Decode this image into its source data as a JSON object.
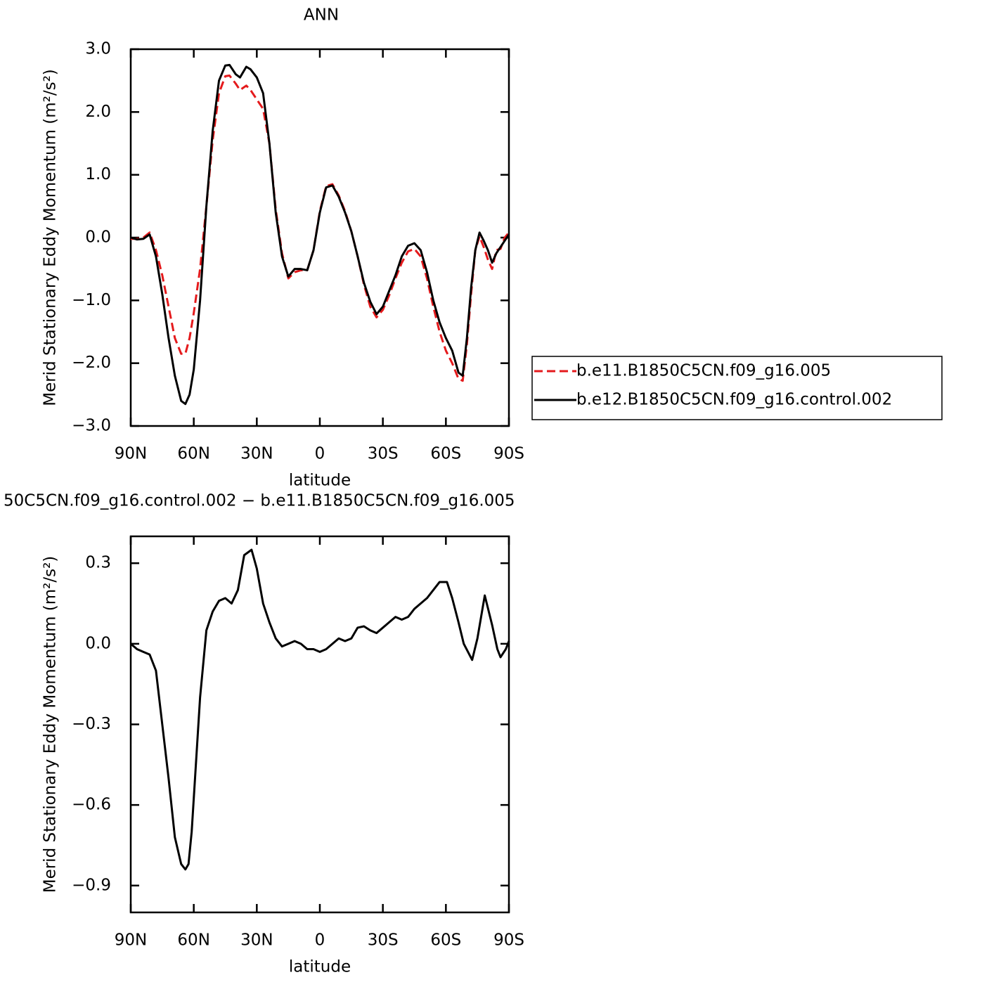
{
  "chart_data": [
    {
      "type": "line",
      "title": "ANN",
      "xlabel": "latitude",
      "ylabel": "Merid Stationary Eddy Momentum (m²/s²)",
      "x": [
        90,
        87,
        84,
        81,
        78,
        75,
        72,
        69,
        66,
        64,
        62,
        60,
        57,
        54,
        51,
        48,
        45,
        43,
        40,
        38,
        35,
        33,
        30,
        27,
        24,
        21,
        18,
        15,
        12,
        9,
        6,
        3,
        0,
        -3,
        -6,
        -9,
        -12,
        -15,
        -18,
        -21,
        -24,
        -27,
        -30,
        -33,
        -36,
        -39,
        -42,
        -45,
        -48,
        -51,
        -54,
        -57,
        -60,
        -63,
        -66,
        -68,
        -70,
        -72,
        -74,
        -76,
        -78,
        -80,
        -82,
        -84,
        -86,
        -88,
        -90
      ],
      "series": [
        {
          "name": "b.e11.B1850C5CN.f09_g16.005",
          "color": "#e41a1c",
          "dashed": true,
          "values": [
            -0.02,
            -0.02,
            0.0,
            0.08,
            -0.2,
            -0.6,
            -1.1,
            -1.6,
            -1.85,
            -1.85,
            -1.6,
            -1.2,
            -0.5,
            0.5,
            1.55,
            2.3,
            2.57,
            2.58,
            2.45,
            2.35,
            2.42,
            2.35,
            2.2,
            2.05,
            1.5,
            0.45,
            -0.25,
            -0.65,
            -0.55,
            -0.52,
            -0.52,
            -0.2,
            0.42,
            0.82,
            0.85,
            0.67,
            0.42,
            0.1,
            -0.3,
            -0.75,
            -1.1,
            -1.27,
            -1.15,
            -0.92,
            -0.65,
            -0.4,
            -0.22,
            -0.18,
            -0.3,
            -0.65,
            -1.1,
            -1.5,
            -1.8,
            -2.0,
            -2.25,
            -2.28,
            -1.7,
            -0.9,
            -0.2,
            0.02,
            -0.15,
            -0.35,
            -0.5,
            -0.2,
            -0.18,
            0.0,
            0.08
          ]
        },
        {
          "name": "b.e12.B1850C5CN.f09_g16.control.002",
          "color": "#000000",
          "dashed": false,
          "values": [
            0,
            -0.03,
            -0.02,
            0.05,
            -0.3,
            -0.9,
            -1.6,
            -2.2,
            -2.6,
            -2.65,
            -2.5,
            -2.1,
            -1.0,
            0.5,
            1.7,
            2.5,
            2.74,
            2.75,
            2.6,
            2.55,
            2.72,
            2.68,
            2.55,
            2.3,
            1.5,
            0.4,
            -0.3,
            -0.62,
            -0.5,
            -0.5,
            -0.52,
            -0.2,
            0.4,
            0.8,
            0.83,
            0.65,
            0.4,
            0.1,
            -0.3,
            -0.72,
            -1.02,
            -1.22,
            -1.1,
            -0.85,
            -0.6,
            -0.3,
            -0.13,
            -0.09,
            -0.2,
            -0.55,
            -1.0,
            -1.35,
            -1.6,
            -1.8,
            -2.15,
            -2.2,
            -1.6,
            -0.8,
            -0.2,
            0.08,
            -0.05,
            -0.2,
            -0.4,
            -0.25,
            -0.15,
            -0.05,
            0.05
          ]
        }
      ],
      "xlim": [
        90,
        -90
      ],
      "xticks": [
        {
          "value": 90,
          "label": "90N"
        },
        {
          "value": 60,
          "label": "60N"
        },
        {
          "value": 30,
          "label": "30N"
        },
        0,
        {
          "value": -30,
          "label": "30S"
        },
        {
          "value": -60,
          "label": "60S"
        },
        {
          "value": -90,
          "label": "90S"
        }
      ],
      "ylim": [
        -3,
        3
      ],
      "yticks": [
        {
          "value": -3,
          "label": "−3.0"
        },
        {
          "value": -2,
          "label": "−2.0"
        },
        {
          "value": -1,
          "label": "−1.0"
        },
        {
          "value": 0,
          "label": "0.0"
        },
        {
          "value": 1,
          "label": "1.0"
        },
        {
          "value": 2,
          "label": "2.0"
        },
        {
          "value": 3,
          "label": "3.0"
        }
      ],
      "grid": false,
      "legend": "right"
    },
    {
      "type": "line",
      "title": "50C5CN.f09_g16.control.002 − b.e11.B1850C5CN.f09_g16.005",
      "xlabel": "latitude",
      "ylabel": "Merid Stationary Eddy Momentum (m²/s²)",
      "x": [
        90,
        87,
        84,
        81,
        78,
        75,
        72,
        69,
        66,
        64,
        62.5,
        61,
        59,
        57,
        54,
        51,
        48,
        45,
        42,
        39,
        36,
        32.5,
        30,
        27,
        24,
        21,
        18,
        15,
        12,
        9,
        6,
        3,
        0,
        -3,
        -6,
        -9,
        -12,
        -15,
        -18,
        -21,
        -24,
        -27,
        -30,
        -33,
        -36,
        -39,
        -42,
        -45,
        -48,
        -51,
        -54,
        -57,
        -60.5,
        -63,
        -66,
        -68.5,
        -72.5,
        -75,
        -78.5,
        -82,
        -84.5,
        -86,
        -88.5,
        -90
      ],
      "series": [
        {
          "color": "#000000",
          "dashed": false,
          "values": [
            0,
            -0.02,
            -0.03,
            -0.04,
            -0.1,
            -0.3,
            -0.5,
            -0.72,
            -0.82,
            -0.84,
            -0.82,
            -0.7,
            -0.45,
            -0.2,
            0.05,
            0.12,
            0.16,
            0.17,
            0.15,
            0.2,
            0.33,
            0.35,
            0.28,
            0.15,
            0.08,
            0.02,
            -0.01,
            0.0,
            0.01,
            0.0,
            -0.02,
            -0.02,
            -0.03,
            -0.02,
            0.0,
            0.02,
            0.01,
            0.02,
            0.06,
            0.065,
            0.05,
            0.04,
            0.06,
            0.08,
            0.1,
            0.09,
            0.1,
            0.13,
            0.15,
            0.17,
            0.2,
            0.23,
            0.23,
            0.17,
            0.08,
            0.0,
            -0.06,
            0.02,
            0.18,
            0.07,
            -0.02,
            -0.05,
            -0.02,
            0.01
          ]
        }
      ],
      "xlim": [
        90,
        -90
      ],
      "xticks": [
        {
          "value": 90,
          "label": "90N"
        },
        {
          "value": 60,
          "label": "60N"
        },
        {
          "value": 30,
          "label": "30N"
        },
        0,
        {
          "value": -30,
          "label": "30S"
        },
        {
          "value": -60,
          "label": "60S"
        },
        {
          "value": -90,
          "label": "90S"
        }
      ],
      "ylim": [
        -1,
        0.4
      ],
      "yticks": [
        {
          "value": -0.9,
          "label": "−0.9"
        },
        {
          "value": -0.6,
          "label": "−0.6"
        },
        {
          "value": -0.3,
          "label": "−0.3"
        },
        {
          "value": 0,
          "label": "0.0"
        },
        0.3
      ],
      "grid": false
    }
  ]
}
